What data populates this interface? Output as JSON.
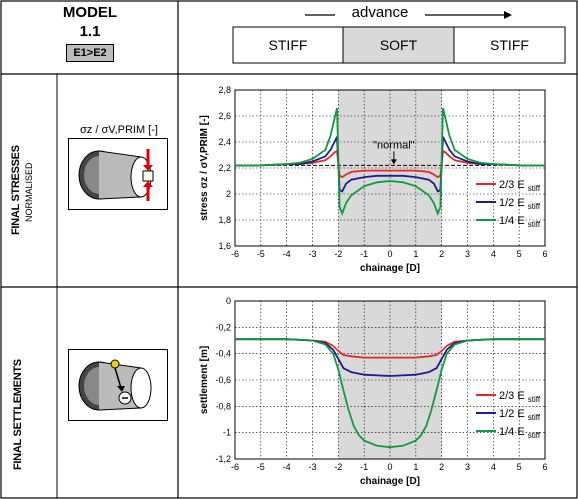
{
  "header": {
    "model_title": "MODEL",
    "model_number": "1.1",
    "model_condition": "E1>E2",
    "advance_label": "advance",
    "segments": [
      "STIFF",
      "SOFT",
      "STIFF"
    ]
  },
  "rows": {
    "stresses": {
      "label": "FINAL STRESSES",
      "sublabel": "NORMALISED",
      "icon_label": "σz / σV,PRIM [-]"
    },
    "settlements": {
      "label": "FINAL SETTLEMENTS"
    }
  },
  "colors": {
    "red": "#e8262a",
    "blue": "#1c1c8c",
    "green": "#0f9a3c",
    "soft_zone": "#d9d9d9"
  },
  "chart_data": [
    {
      "type": "line",
      "xlabel": "chainage [D]",
      "ylabel": "stress σz / σV,PRIM [-]",
      "xlim": [
        -6,
        6
      ],
      "ylim": [
        1.6,
        2.8
      ],
      "xticks": [
        "-6",
        "-5",
        "-4",
        "-3",
        "-2",
        "-1",
        "0",
        "1",
        "2",
        "3",
        "4",
        "5",
        "6"
      ],
      "yticks": [
        "1,6",
        "1,8",
        "2",
        "2,2",
        "2,4",
        "2,6",
        "2,8"
      ],
      "soft_zone": [
        -2,
        2
      ],
      "reference_line": {
        "y": 2.22,
        "label": "\"normal\""
      },
      "grid": true,
      "legend_position": "bottom-right",
      "series": [
        {
          "name": "2/3 E stiff",
          "color": "red",
          "x": [
            -6,
            -5,
            -4,
            -3.5,
            -3,
            -2.5,
            -2.3,
            -2.15,
            -2.05,
            -1.95,
            -1.85,
            -1.7,
            -1.5,
            -1,
            -0.5,
            0,
            0.5,
            1,
            1.5,
            1.7,
            1.85,
            1.95,
            2.05,
            2.15,
            2.3,
            2.5,
            3,
            3.5,
            4,
            5,
            6
          ],
          "y": [
            2.22,
            2.22,
            2.23,
            2.23,
            2.24,
            2.26,
            2.29,
            2.32,
            2.33,
            2.14,
            2.13,
            2.15,
            2.17,
            2.18,
            2.18,
            2.18,
            2.18,
            2.18,
            2.17,
            2.15,
            2.13,
            2.14,
            2.33,
            2.32,
            2.29,
            2.26,
            2.24,
            2.23,
            2.23,
            2.22,
            2.22
          ]
        },
        {
          "name": "1/2 E stiff",
          "color": "blue",
          "x": [
            -6,
            -5,
            -4,
            -3.5,
            -3,
            -2.5,
            -2.3,
            -2.15,
            -2.05,
            -1.95,
            -1.85,
            -1.7,
            -1.5,
            -1,
            -0.5,
            0,
            0.5,
            1,
            1.5,
            1.7,
            1.85,
            1.95,
            2.05,
            2.15,
            2.3,
            2.5,
            3,
            3.5,
            4,
            5,
            6
          ],
          "y": [
            2.22,
            2.22,
            2.23,
            2.23,
            2.25,
            2.29,
            2.34,
            2.4,
            2.44,
            2.03,
            2.02,
            2.08,
            2.11,
            2.13,
            2.14,
            2.14,
            2.14,
            2.13,
            2.11,
            2.08,
            2.02,
            2.03,
            2.44,
            2.4,
            2.34,
            2.29,
            2.25,
            2.23,
            2.23,
            2.22,
            2.22
          ]
        },
        {
          "name": "1/4 E stiff",
          "color": "green",
          "x": [
            -6,
            -5,
            -4,
            -3.5,
            -3,
            -2.5,
            -2.3,
            -2.15,
            -2.05,
            -1.95,
            -1.85,
            -1.7,
            -1.5,
            -1,
            -0.5,
            0,
            0.5,
            1,
            1.5,
            1.7,
            1.85,
            1.95,
            2.05,
            2.15,
            2.3,
            2.5,
            3,
            3.5,
            4,
            5,
            6
          ],
          "y": [
            2.22,
            2.22,
            2.23,
            2.24,
            2.27,
            2.34,
            2.45,
            2.58,
            2.66,
            1.9,
            1.85,
            1.93,
            1.99,
            2.06,
            2.09,
            2.1,
            2.09,
            2.06,
            1.99,
            1.93,
            1.85,
            1.9,
            2.66,
            2.58,
            2.45,
            2.34,
            2.27,
            2.24,
            2.23,
            2.22,
            2.22
          ]
        }
      ]
    },
    {
      "type": "line",
      "xlabel": "chainage [D]",
      "ylabel": "settlement [m]",
      "xlim": [
        -6,
        6
      ],
      "ylim": [
        -1.2,
        0
      ],
      "xticks": [
        "-6",
        "-5",
        "-4",
        "-3",
        "-2",
        "-1",
        "0",
        "1",
        "2",
        "3",
        "4",
        "5",
        "6"
      ],
      "yticks": [
        "-1,2",
        "-1",
        "-0,8",
        "-0,6",
        "-0,4",
        "-0,2",
        "0"
      ],
      "soft_zone": [
        -2,
        2
      ],
      "grid": true,
      "legend_position": "bottom-right",
      "series": [
        {
          "name": "2/3 E stiff",
          "color": "red",
          "x": [
            -6,
            -5,
            -4,
            -3,
            -2.5,
            -2.2,
            -2,
            -1.8,
            -1.5,
            -1,
            0,
            1,
            1.5,
            1.8,
            2,
            2.2,
            2.5,
            3,
            4,
            5,
            6
          ],
          "y": [
            -0.29,
            -0.29,
            -0.29,
            -0.3,
            -0.31,
            -0.34,
            -0.38,
            -0.41,
            -0.42,
            -0.43,
            -0.43,
            -0.43,
            -0.42,
            -0.41,
            -0.38,
            -0.34,
            -0.31,
            -0.3,
            -0.29,
            -0.29,
            -0.29
          ]
        },
        {
          "name": "1/2 E stiff",
          "color": "blue",
          "x": [
            -6,
            -5,
            -4,
            -3,
            -2.5,
            -2.2,
            -2,
            -1.8,
            -1.5,
            -1,
            0,
            1,
            1.5,
            1.8,
            2,
            2.2,
            2.5,
            3,
            4,
            5,
            6
          ],
          "y": [
            -0.29,
            -0.29,
            -0.29,
            -0.3,
            -0.32,
            -0.37,
            -0.44,
            -0.51,
            -0.54,
            -0.56,
            -0.57,
            -0.56,
            -0.54,
            -0.51,
            -0.44,
            -0.37,
            -0.32,
            -0.3,
            -0.29,
            -0.29,
            -0.29
          ]
        },
        {
          "name": "1/4 E stiff",
          "color": "green",
          "x": [
            -6,
            -5,
            -4,
            -3,
            -2.5,
            -2.2,
            -2,
            -1.8,
            -1.6,
            -1.4,
            -1.2,
            -1,
            -0.5,
            0,
            0.5,
            1,
            1.2,
            1.4,
            1.6,
            1.8,
            2,
            2.2,
            2.5,
            3,
            4,
            5,
            6
          ],
          "y": [
            -0.29,
            -0.29,
            -0.29,
            -0.3,
            -0.33,
            -0.4,
            -0.52,
            -0.68,
            -0.83,
            -0.95,
            -1.02,
            -1.06,
            -1.1,
            -1.11,
            -1.1,
            -1.06,
            -1.02,
            -0.95,
            -0.83,
            -0.68,
            -0.52,
            -0.4,
            -0.33,
            -0.3,
            -0.29,
            -0.29,
            -0.29
          ]
        }
      ]
    }
  ]
}
